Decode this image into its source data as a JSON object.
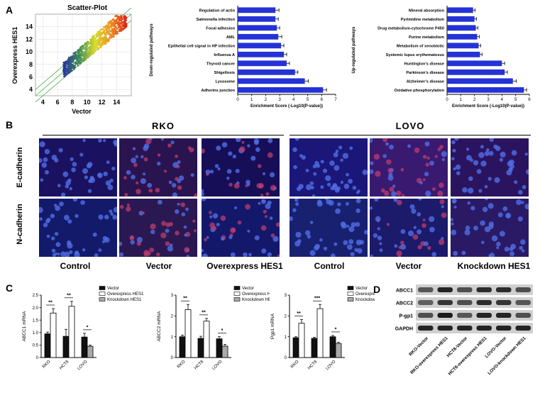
{
  "panels": {
    "A": "A",
    "B": "B",
    "C": "C",
    "D": "D"
  },
  "scatter": {
    "title": "Scatter-Plot",
    "xlabel": "Vector",
    "ylabel": "Overexpress HES1",
    "xticks": [
      "4",
      "6",
      "8",
      "10",
      "12",
      "14"
    ],
    "yticks": [
      "4",
      "6",
      "8",
      "10",
      "12",
      "14"
    ]
  },
  "chart_data": [
    {
      "type": "bar",
      "orientation": "horizontal",
      "ylabel": "Down-regulated pathways",
      "xlabel": "Enrichment Score (-Log10(P-value))",
      "xlim": [
        0,
        7
      ],
      "xticks": [
        "0",
        "1",
        "2",
        "3",
        "4",
        "5",
        "6",
        "7"
      ],
      "categories": [
        "Regulation of actin",
        "Salmonella infection",
        "Focal adhesion",
        "AML",
        "Epithelial cell signal in HP infection",
        "Influenza A",
        "Thyroid cancer",
        "Shigellosis",
        "Lysosome",
        "Adherins junction"
      ],
      "values": [
        2.7,
        2.7,
        2.8,
        2.9,
        3.1,
        3.3,
        3.5,
        4.1,
        4.8,
        6.1
      ],
      "errors": [
        0.25,
        0.2,
        0.2,
        0.25,
        0.2,
        0.2,
        0.2,
        0.2,
        0.25,
        0.25
      ],
      "color": "#2433d6"
    },
    {
      "type": "bar",
      "orientation": "horizontal",
      "ylabel": "Up-regulated pathways",
      "xlabel": "Enrichment Score (-Log10(P-value))",
      "xlim": [
        0,
        6
      ],
      "xticks": [
        "0",
        "1",
        "2",
        "3",
        "4",
        "5",
        "6"
      ],
      "categories": [
        "Mineral absorption",
        "Pyrimidine metabolism",
        "Drug metabolism-cytochrome P450",
        "Purine metabolism",
        "Metabolism of xenobiotic",
        "Systemic lupus erythematosus",
        "Huntington's disease",
        "Parkinson's disease",
        "Alzheimer's disease",
        "Oxidative phosphorylation"
      ],
      "values": [
        1.9,
        2.0,
        2.1,
        2.2,
        2.3,
        2.4,
        4.0,
        4.2,
        4.8,
        5.6
      ],
      "errors": [
        0.15,
        0.15,
        0.15,
        0.15,
        0.15,
        0.15,
        0.2,
        0.2,
        0.25,
        0.2
      ],
      "color": "#2433d6"
    },
    {
      "type": "bar",
      "ylabel": "ABCC1 mRNA",
      "ylim": [
        0,
        2.5
      ],
      "yticks": [
        "0",
        "0.5",
        "1.0",
        "1.5",
        "2.0",
        "2.5"
      ],
      "categories": [
        "RKO",
        "HCT8",
        "LOVO"
      ],
      "legend": [
        "Vector",
        "Overexpress HES1",
        "Knockdown HES1"
      ],
      "groups": [
        {
          "bars": [
            {
              "v": 0.95,
              "e": 0.07,
              "s": 0
            },
            {
              "v": 1.78,
              "e": 0.18,
              "s": 1
            }
          ],
          "sig": "**"
        },
        {
          "bars": [
            {
              "v": 0.85,
              "e": 0.28,
              "s": 0
            },
            {
              "v": 2.05,
              "e": 0.2,
              "s": 1
            }
          ],
          "sig": "**"
        },
        {
          "bars": [
            {
              "v": 0.82,
              "e": 0.15,
              "s": 0
            },
            {
              "v": 0.45,
              "e": 0.05,
              "s": 2
            }
          ],
          "sig": "*"
        }
      ]
    },
    {
      "type": "bar",
      "ylabel": "ABCC2 mRNA",
      "ylim": [
        0,
        3
      ],
      "yticks": [
        "0",
        "1",
        "2",
        "3"
      ],
      "categories": [
        "RKO",
        "HCT8",
        "LOVO"
      ],
      "legend": [
        "Vector",
        "Overexpress HES1",
        "Knockdown HES1"
      ],
      "groups": [
        {
          "bars": [
            {
              "v": 1.0,
              "e": 0.08,
              "s": 0
            },
            {
              "v": 2.3,
              "e": 0.25,
              "s": 1
            }
          ],
          "sig": "**"
        },
        {
          "bars": [
            {
              "v": 0.92,
              "e": 0.1,
              "s": 0
            },
            {
              "v": 1.75,
              "e": 0.13,
              "s": 1
            }
          ],
          "sig": "**"
        },
        {
          "bars": [
            {
              "v": 0.9,
              "e": 0.1,
              "s": 0
            },
            {
              "v": 0.55,
              "e": 0.08,
              "s": 2
            }
          ],
          "sig": "*"
        }
      ]
    },
    {
      "type": "bar",
      "ylabel": "Pgp1 mRNA",
      "ylim": [
        0,
        3
      ],
      "yticks": [
        "0",
        "1",
        "2",
        "3"
      ],
      "categories": [
        "RKO",
        "HCT8",
        "LOVO"
      ],
      "legend": [
        "Vector",
        "Overexpress HES1",
        "Knockdown HES1"
      ],
      "groups": [
        {
          "bars": [
            {
              "v": 0.95,
              "e": 0.05,
              "s": 0
            },
            {
              "v": 1.65,
              "e": 0.18,
              "s": 1
            }
          ],
          "sig": "**"
        },
        {
          "bars": [
            {
              "v": 0.92,
              "e": 0.05,
              "s": 0
            },
            {
              "v": 2.35,
              "e": 0.2,
              "s": 1
            }
          ],
          "sig": "***"
        },
        {
          "bars": [
            {
              "v": 1.0,
              "e": 0.06,
              "s": 0
            },
            {
              "v": 0.68,
              "e": 0.05,
              "s": 2
            }
          ],
          "sig": "*"
        }
      ]
    }
  ],
  "microscopy": {
    "group_left": "RKO",
    "group_right": "LOVO",
    "rows": [
      "E-cadherin",
      "N-cadherin"
    ],
    "columns": [
      "Control",
      "Vector",
      "Overexpress HES1",
      "Control",
      "Vector",
      "Knockdown HES1"
    ]
  },
  "western": {
    "proteins": [
      "ABCC1",
      "ABCC2",
      "P-gp1",
      "GAPDH"
    ],
    "lanes": [
      "RKO-Vector",
      "RKO-overexpress HES1",
      "HCT8-Vector",
      "HCT8-overexpress HES1",
      "LOVO-Vector",
      "LOVO-knockdown HES1"
    ]
  }
}
